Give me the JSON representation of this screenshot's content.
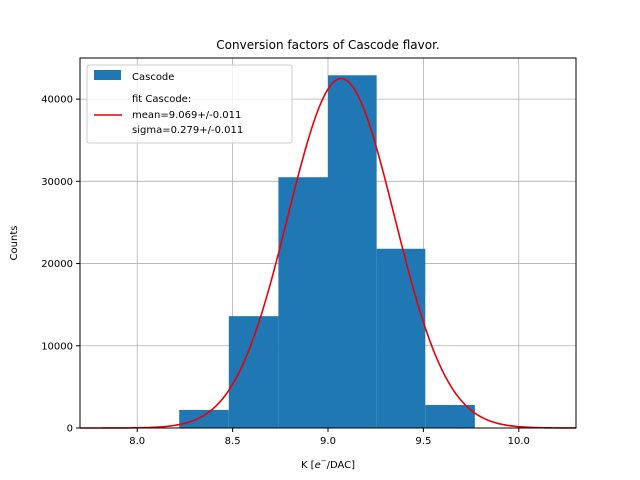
{
  "chart_data": {
    "type": "bar",
    "title": "Conversion factors of Cascode flavor.",
    "xlabel_prefix": "K [",
    "xlabel_e": "e",
    "xlabel_sup": "−",
    "xlabel_suffix": "/DAC]",
    "ylabel": "Counts",
    "xlim": [
      7.7,
      10.3
    ],
    "ylim": [
      0,
      45000
    ],
    "xticks": [
      8.0,
      8.5,
      9.0,
      9.5,
      10.0
    ],
    "xtick_labels": [
      "8.0",
      "8.5",
      "9.0",
      "9.5",
      "10.0"
    ],
    "yticks": [
      0,
      10000,
      20000,
      30000,
      40000
    ],
    "ytick_labels": [
      "0",
      "10000",
      "20000",
      "30000",
      "40000"
    ],
    "grid": true,
    "legend_location": "top-left",
    "histogram": {
      "name": "Cascode",
      "color": "#1f77b4",
      "bin_edges": [
        8.22,
        8.48,
        8.74,
        9.0,
        9.255,
        9.51,
        9.77
      ],
      "counts": [
        2200,
        13600,
        30500,
        42900,
        21800,
        2800
      ]
    },
    "fit": {
      "name_lines": [
        "fit Cascode:",
        "mean=9.069+/-0.011",
        "sigma=0.279+/-0.011"
      ],
      "color": "#e8000b",
      "mean": 9.069,
      "sigma": 0.279,
      "amplitude": 42500,
      "x_range": [
        7.7,
        10.3
      ]
    }
  }
}
